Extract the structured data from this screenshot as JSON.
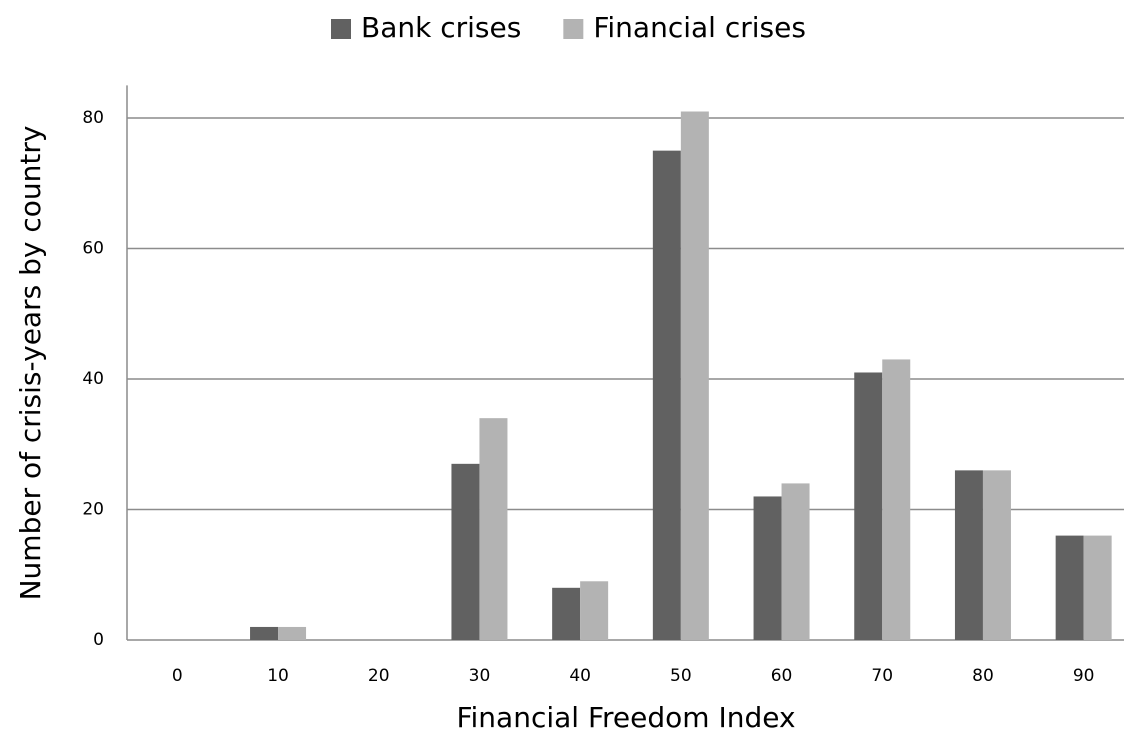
{
  "chart_data": {
    "type": "bar",
    "x_label": "Financial Freedom Index",
    "y_label": "Number of crisis-years  by country",
    "categories": [
      "0",
      "10",
      "20",
      "30",
      "40",
      "50",
      "60",
      "70",
      "80",
      "90"
    ],
    "series": [
      {
        "name": "Bank crises",
        "color": "#616161",
        "values": [
          0,
          2,
          0,
          27,
          8,
          75,
          22,
          41,
          26,
          16
        ]
      },
      {
        "name": "Financial crises",
        "color": "#b3b3b3",
        "values": [
          0,
          2,
          0,
          34,
          9,
          81,
          24,
          43,
          26,
          16
        ]
      }
    ],
    "ylim": [
      0,
      85
    ],
    "yticks": [
      0,
      20,
      40,
      60,
      80
    ],
    "grid": true,
    "legend": "top"
  }
}
